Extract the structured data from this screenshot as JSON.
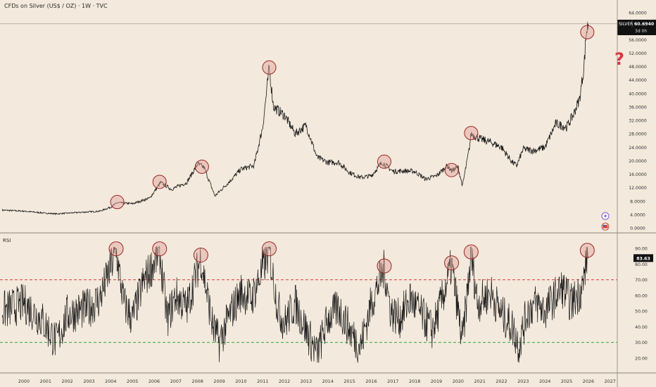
{
  "header": {
    "title": "CFDs on Silver (US$ / OZ) · 1W · TVC"
  },
  "price_badge": {
    "symbol": "SILVER",
    "value": "60.6940",
    "countdown": "3d 0h"
  },
  "rsi_badge": {
    "value": "83.63"
  },
  "rsi_pane": {
    "label": "RSI"
  },
  "annotations": {
    "question_mark": "?"
  },
  "colors": {
    "background": "#f3e9dc",
    "line": "#1a1a1a",
    "circle_fill": "rgba(225,160,150,0.45)",
    "circle_stroke": "#9b2525",
    "overbought_line": "#e03a3a",
    "oversold_line": "#2ea83a",
    "question_mark": "#e03240",
    "badge_bg": "#111111"
  },
  "chart_data": [
    {
      "type": "line",
      "title": "CFDs on Silver (US$ / OZ) · 1W · TVC",
      "ylim": [
        0,
        64
      ],
      "y_ticks": [
        "64.0000",
        "60.0000",
        "56.0000",
        "52.0000",
        "48.0000",
        "44.0000",
        "40.0000",
        "36.0000",
        "32.0000",
        "28.0000",
        "24.0000",
        "20.0000",
        "16.0000",
        "12.0000",
        "8.0000",
        "4.0000",
        "0.0000"
      ],
      "grid": false,
      "series": [
        {
          "x": [
            1999.0,
            2000.0,
            2001.0,
            2001.5,
            2002.5,
            2003.5,
            2004.0,
            2004.3,
            2005.0,
            2005.8,
            2006.3,
            2006.8,
            2007.5,
            2008.0,
            2008.3,
            2008.8,
            2009.5,
            2010.0,
            2010.6,
            2011.0,
            2011.3,
            2011.5,
            2012.0,
            2012.5,
            2013.0,
            2013.5,
            2014.0,
            2014.5,
            2015.0,
            2015.5,
            2016.0,
            2016.5,
            2017.0,
            2017.5,
            2018.0,
            2018.5,
            2019.0,
            2019.5,
            2019.7,
            2020.0,
            2020.2,
            2020.5,
            2020.6,
            2021.0,
            2021.5,
            2022.0,
            2022.5,
            2022.7,
            2023.0,
            2023.5,
            2024.0,
            2024.5,
            2025.0,
            2025.3,
            2025.6,
            2025.8,
            2025.9,
            2026.0
          ],
          "values": [
            5.3,
            5.0,
            4.4,
            4.2,
            4.6,
            5.0,
            6.2,
            7.5,
            7.2,
            8.9,
            13.5,
            11.5,
            13.5,
            19.0,
            18.0,
            9.5,
            14.0,
            17.5,
            18.5,
            30.0,
            47.5,
            36.0,
            33.5,
            28.0,
            30.5,
            21.0,
            19.5,
            19.5,
            16.5,
            15.0,
            15.5,
            19.5,
            16.8,
            17.0,
            16.8,
            14.5,
            15.5,
            18.5,
            17.0,
            18.0,
            12.5,
            23.0,
            28.0,
            26.5,
            25.5,
            24.0,
            19.5,
            18.5,
            23.5,
            23.0,
            24.0,
            31.0,
            30.0,
            33.5,
            38.5,
            48.0,
            58.0,
            60.69
          ]
        }
      ],
      "highlight_circles_x": [
        2004.3,
        2006.25,
        2008.2,
        2011.3,
        2016.6,
        2019.7,
        2020.6,
        2025.95
      ]
    },
    {
      "type": "line",
      "title": "RSI",
      "ylim": [
        15,
        95
      ],
      "y_ticks": [
        "90.00",
        "80.00",
        "70.00",
        "60.00",
        "50.00",
        "40.00",
        "30.00",
        "20.00"
      ],
      "reference_lines": [
        70,
        30
      ],
      "xlim": [
        1998.9,
        2027.3
      ],
      "x_ticks": [
        "2000",
        "2001",
        "2002",
        "2003",
        "2004",
        "2005",
        "2006",
        "2007",
        "2008",
        "2009",
        "2010",
        "2011",
        "2012",
        "2013",
        "2014",
        "2015",
        "2016",
        "2017",
        "2018",
        "2019",
        "2020",
        "2021",
        "2022",
        "2023",
        "2024",
        "2025",
        "2026",
        "2027"
      ],
      "series": [
        {
          "x": [
            1999.0,
            2000.0,
            2000.8,
            2001.5,
            2002.0,
            2003.0,
            2003.5,
            2004.25,
            2004.6,
            2005.0,
            2005.5,
            2006.25,
            2006.6,
            2007.0,
            2007.5,
            2008.15,
            2008.7,
            2009.0,
            2009.5,
            2010.0,
            2010.5,
            2011.3,
            2011.7,
            2012.0,
            2012.5,
            2013.0,
            2013.5,
            2014.0,
            2014.5,
            2015.0,
            2015.5,
            2016.0,
            2016.6,
            2016.9,
            2017.3,
            2017.8,
            2018.3,
            2018.8,
            2019.0,
            2019.7,
            2020.2,
            2020.6,
            2020.9,
            2021.5,
            2022.0,
            2022.5,
            2022.8,
            2023.2,
            2023.6,
            2024.0,
            2024.4,
            2024.8,
            2025.2,
            2025.5,
            2025.75,
            2025.95,
            2026.0
          ],
          "values": [
            50,
            55,
            45,
            30,
            48,
            52,
            58,
            88,
            55,
            45,
            68,
            88,
            45,
            60,
            52,
            84,
            40,
            30,
            48,
            62,
            58,
            88,
            52,
            42,
            55,
            38,
            22,
            45,
            52,
            38,
            27,
            55,
            77,
            50,
            45,
            58,
            48,
            38,
            45,
            79,
            30,
            86,
            55,
            62,
            48,
            40,
            28,
            50,
            55,
            50,
            58,
            65,
            55,
            60,
            66,
            87,
            83.63
          ]
        }
      ],
      "highlight_circles_x": [
        2004.25,
        2006.25,
        2008.15,
        2011.3,
        2016.6,
        2019.7,
        2020.6,
        2025.95
      ]
    }
  ]
}
